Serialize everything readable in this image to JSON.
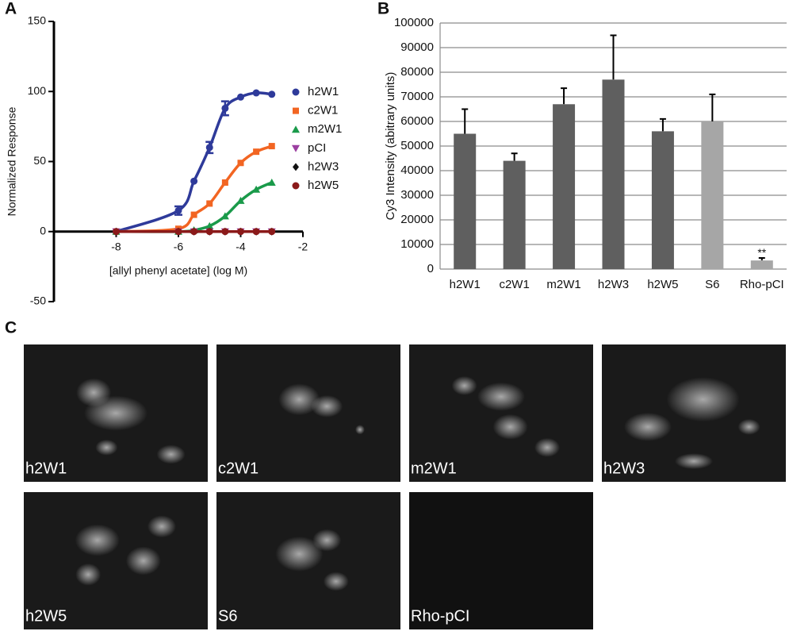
{
  "chart_data": [
    {
      "type": "line",
      "panel": "A",
      "y_label": "Normalized Response",
      "x_label": "[allyl phenyl acetate] (log M)",
      "x": [
        -8,
        -6,
        -5.5,
        -5,
        -4.5,
        -4,
        -3.5,
        -3
      ],
      "xlim": [
        -10,
        -2
      ],
      "xticks": [
        -8,
        -6,
        -4,
        -2
      ],
      "ylim": [
        -50,
        150
      ],
      "yticks": [
        -50,
        0,
        50,
        100,
        150
      ],
      "series": [
        {
          "name": "h2W1",
          "color": "#2e3a9a",
          "marker": "circle",
          "values": [
            0,
            15,
            36,
            60,
            88,
            96,
            99,
            98
          ],
          "errors": [
            null,
            3,
            null,
            4,
            5,
            null,
            null,
            null
          ]
        },
        {
          "name": "c2W1",
          "color": "#f26522",
          "marker": "square",
          "values": [
            0,
            2,
            12,
            20,
            35,
            49,
            57,
            61
          ]
        },
        {
          "name": "m2W1",
          "color": "#1a9a4a",
          "marker": "triangle",
          "values": [
            0,
            0,
            1,
            4,
            11,
            22,
            30,
            35
          ]
        },
        {
          "name": "pCI",
          "color": "#9b3fa0",
          "marker": "triangle-down",
          "values": [
            0,
            0,
            0,
            0,
            0,
            0,
            0,
            0
          ]
        },
        {
          "name": "h2W3",
          "color": "#111111",
          "marker": "diamond",
          "values": [
            0,
            0,
            0,
            0,
            0,
            0,
            0,
            0
          ]
        },
        {
          "name": "h2W5",
          "color": "#8b1a1a",
          "marker": "circle",
          "values": [
            0,
            0,
            0,
            0,
            0,
            0,
            0,
            0
          ]
        }
      ]
    },
    {
      "type": "bar",
      "panel": "B",
      "y_label": "Cy3 Intensity (abitrary units)",
      "categories": [
        "h2W1",
        "c2W1",
        "m2W1",
        "h2W3",
        "h2W5",
        "S6",
        "Rho-pCI"
      ],
      "values": [
        55000,
        44000,
        67000,
        77000,
        56000,
        60000,
        3500
      ],
      "errors": [
        10000,
        3000,
        6500,
        18000,
        5000,
        11000,
        1000
      ],
      "colors": [
        "#5f5f5f",
        "#5f5f5f",
        "#5f5f5f",
        "#5f5f5f",
        "#5f5f5f",
        "#a6a6a6",
        "#a6a6a6"
      ],
      "ylim": [
        0,
        100000
      ],
      "yticks": [
        0,
        10000,
        20000,
        30000,
        40000,
        50000,
        60000,
        70000,
        80000,
        90000,
        100000
      ],
      "grid": true,
      "annotation": {
        "text": "**",
        "category": "Rho-pCI"
      }
    }
  ],
  "panel_c": {
    "panel": "C",
    "images": [
      {
        "label": "h2W1"
      },
      {
        "label": "c2W1"
      },
      {
        "label": "m2W1"
      },
      {
        "label": "h2W3"
      },
      {
        "label": "h2W5"
      },
      {
        "label": "S6"
      },
      {
        "label": "Rho-pCI"
      }
    ]
  }
}
